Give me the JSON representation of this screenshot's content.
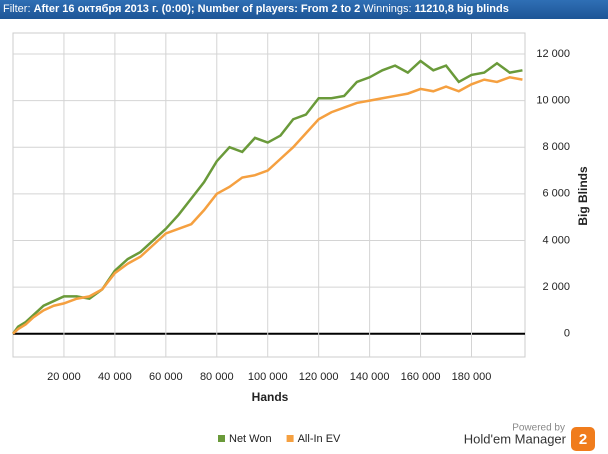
{
  "filter_bar": {
    "label": "Filter:",
    "filter": "After 16 октября 2013 г. (0:00); Number of players: From 2 to 2",
    "winnings_label": "Winnings:",
    "winnings": "11210,8 big blinds"
  },
  "chart_data": {
    "type": "line",
    "x_label": "Hands",
    "y_label": "Big Blinds",
    "x": [
      0,
      2000,
      5000,
      8000,
      12000,
      16000,
      20000,
      25000,
      30000,
      35000,
      40000,
      45000,
      50000,
      55000,
      60000,
      65000,
      70000,
      75000,
      80000,
      85000,
      90000,
      95000,
      100000,
      105000,
      110000,
      115000,
      120000,
      125000,
      130000,
      135000,
      140000,
      145000,
      150000,
      155000,
      160000,
      165000,
      170000,
      175000,
      180000,
      185000,
      190000,
      195000,
      200000
    ],
    "series": [
      {
        "name": "Net Won",
        "color": "#6a9a3a",
        "values": [
          0,
          300,
          500,
          800,
          1200,
          1400,
          1600,
          1600,
          1500,
          1900,
          2700,
          3200,
          3500,
          4000,
          4500,
          5100,
          5800,
          6500,
          7400,
          8000,
          7800,
          8400,
          8200,
          8500,
          9200,
          9400,
          10100,
          10100,
          10200,
          10800,
          11000,
          11300,
          11500,
          11200,
          11700,
          11300,
          11500,
          10800,
          11100,
          11200,
          11600,
          11200,
          11300
        ]
      },
      {
        "name": "All-In EV",
        "color": "#f5a040",
        "values": [
          0,
          200,
          400,
          700,
          1000,
          1200,
          1300,
          1500,
          1600,
          1900,
          2600,
          3000,
          3300,
          3800,
          4300,
          4500,
          4700,
          5300,
          6000,
          6300,
          6700,
          6800,
          7000,
          7500,
          8000,
          8600,
          9200,
          9500,
          9700,
          9900,
          10000,
          10100,
          10200,
          10300,
          10500,
          10400,
          10600,
          10400,
          10700,
          10900,
          10800,
          11000,
          10900
        ]
      }
    ],
    "xlim": [
      0,
      201000
    ],
    "xticks": [
      {
        "value": 20000,
        "label": "20 000"
      },
      {
        "value": 40000,
        "label": "40 000"
      },
      {
        "value": 60000,
        "label": "60 000"
      },
      {
        "value": 80000,
        "label": "80 000"
      },
      {
        "value": 100000,
        "label": "100 000"
      },
      {
        "value": 120000,
        "label": "120 000"
      },
      {
        "value": 140000,
        "label": "140 000"
      },
      {
        "value": 160000,
        "label": "160 000"
      },
      {
        "value": 180000,
        "label": "180 000"
      }
    ],
    "ylim": [
      -1000,
      12900
    ],
    "yticks": [
      0,
      {
        "value": 2000,
        "label": "2 000"
      },
      {
        "value": 4000,
        "label": "4 000"
      },
      {
        "value": 6000,
        "label": "6 000"
      },
      {
        "value": 8000,
        "label": "8 000"
      },
      {
        "value": 10000,
        "label": "10 000"
      },
      {
        "value": 12000,
        "label": "12 000"
      }
    ],
    "grid": true,
    "legend": "bottom"
  },
  "branding": {
    "powered_by": "Powered by",
    "product": "Hold'em Manager",
    "badge": "2"
  }
}
